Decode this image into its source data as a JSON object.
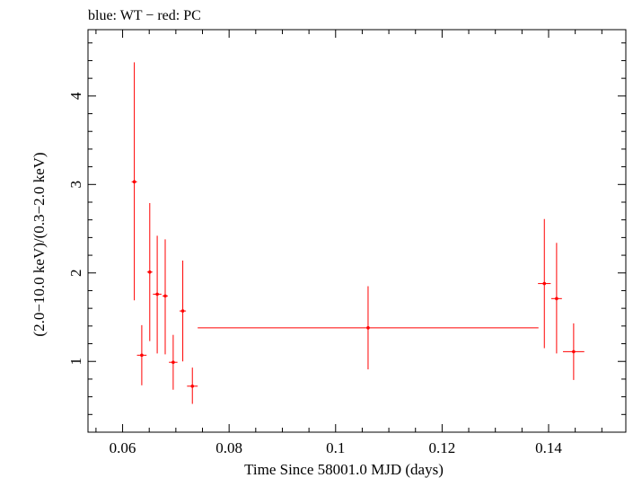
{
  "chart_data": {
    "type": "scatter",
    "title": "blue: WT − red: PC",
    "xlabel": "Time Since 58001.0 MJD (days)",
    "ylabel": "(2.0−10.0 keV)/(0.3−2.0 keV)",
    "xlim": [
      0.0535,
      0.1545
    ],
    "ylim": [
      0.2,
      4.75
    ],
    "x_ticks": [
      0.06,
      0.08,
      0.1,
      0.12,
      0.14
    ],
    "x_tick_labels": [
      "0.06",
      "0.08",
      "0.1",
      "0.12",
      "0.14"
    ],
    "y_ticks": [
      1,
      2,
      3,
      4
    ],
    "y_tick_labels": [
      "1",
      "2",
      "3",
      "4"
    ],
    "grid": false,
    "series": [
      {
        "name": "PC",
        "color": "#ff0000",
        "points": [
          {
            "x": 0.0622,
            "xerr": 0.0005,
            "y": 3.03,
            "ylo": 1.69,
            "yhi": 4.38
          },
          {
            "x": 0.0636,
            "xerr": 0.0009,
            "y": 1.07,
            "ylo": 0.73,
            "yhi": 1.41
          },
          {
            "x": 0.0651,
            "xerr": 0.0005,
            "y": 2.01,
            "ylo": 1.23,
            "yhi": 2.79
          },
          {
            "x": 0.0665,
            "xerr": 0.0008,
            "y": 1.76,
            "ylo": 1.09,
            "yhi": 2.42
          },
          {
            "x": 0.068,
            "xerr": 0.0005,
            "y": 1.74,
            "ylo": 1.08,
            "yhi": 2.38
          },
          {
            "x": 0.0695,
            "xerr": 0.0008,
            "y": 0.99,
            "ylo": 0.68,
            "yhi": 1.3
          },
          {
            "x": 0.0713,
            "xerr": 0.0006,
            "y": 1.57,
            "ylo": 1.0,
            "yhi": 2.14
          },
          {
            "x": 0.0731,
            "xerr": 0.001,
            "y": 0.72,
            "ylo": 0.52,
            "yhi": 0.93
          },
          {
            "x": 0.1061,
            "xerr": 0.032,
            "y": 1.38,
            "ylo": 0.91,
            "yhi": 1.85
          },
          {
            "x": 0.1392,
            "xerr": 0.0012,
            "y": 1.88,
            "ylo": 1.15,
            "yhi": 2.61
          },
          {
            "x": 0.1415,
            "xerr": 0.001,
            "y": 1.71,
            "ylo": 1.09,
            "yhi": 2.34
          },
          {
            "x": 0.1447,
            "xerr": 0.002,
            "y": 1.11,
            "ylo": 0.79,
            "yhi": 1.43
          }
        ]
      }
    ]
  }
}
